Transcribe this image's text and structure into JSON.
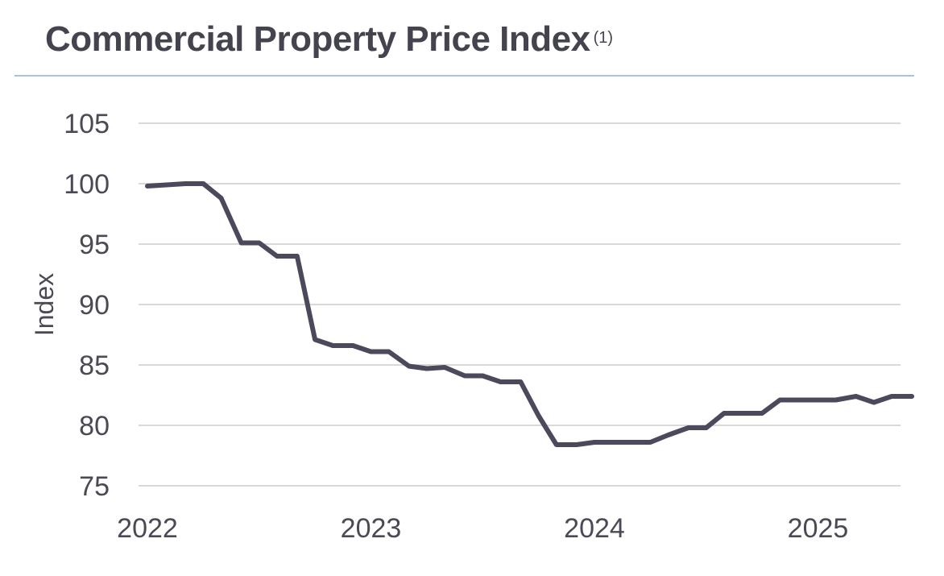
{
  "title": "Commercial Property Price Index",
  "title_note": "(1)",
  "colors": {
    "line": "#4b4a5c",
    "grid": "#d9d9d9",
    "rule": "#a8c4dc",
    "text": "#44444f"
  },
  "chart_data": {
    "type": "line",
    "title": "Commercial Property Price Index",
    "xlabel": "",
    "ylabel": "Index",
    "ylim": [
      75,
      105
    ],
    "yticks": [
      75,
      80,
      85,
      90,
      95,
      100,
      105
    ],
    "xticks": [
      "2022",
      "2023",
      "2024",
      "2025"
    ],
    "xlim": [
      2022.0,
      2025.42
    ],
    "grid": true,
    "series": [
      {
        "x": [
          2022.0,
          2022.17,
          2022.25,
          2022.33,
          2022.42,
          2022.5,
          2022.58,
          2022.67,
          2022.75,
          2022.83,
          2022.92,
          2023.0,
          2023.08,
          2023.17,
          2023.25,
          2023.33,
          2023.42,
          2023.5,
          2023.58,
          2023.67,
          2023.75,
          2023.83,
          2023.92,
          2024.0,
          2024.08,
          2024.17,
          2024.25,
          2024.33,
          2024.42,
          2024.5,
          2024.58,
          2024.67,
          2024.75,
          2024.83,
          2024.92,
          2025.0,
          2025.08,
          2025.17,
          2025.25,
          2025.33,
          2025.42
        ],
        "values": [
          99.8,
          100.0,
          100.0,
          98.8,
          95.1,
          95.1,
          94.0,
          94.0,
          87.1,
          86.6,
          86.6,
          86.1,
          86.1,
          84.9,
          84.7,
          84.8,
          84.1,
          84.1,
          83.6,
          83.6,
          80.8,
          78.4,
          78.4,
          78.6,
          78.6,
          78.6,
          78.6,
          79.2,
          79.8,
          79.8,
          81.0,
          81.0,
          81.0,
          82.1,
          82.1,
          82.1,
          82.1,
          82.4,
          81.9,
          82.4,
          82.4
        ]
      }
    ]
  }
}
